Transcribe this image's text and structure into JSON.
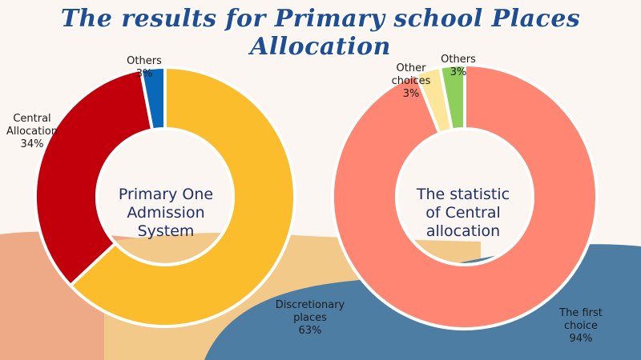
{
  "title": "The results for Primary school Places Allocation",
  "colors": {
    "background": "#fbf6f1",
    "title": "#1f4e96",
    "peach": "#eeaa86",
    "sand": "#f3c98a",
    "blue": "#4d7da3"
  },
  "chart_data": [
    {
      "type": "pie",
      "donut": true,
      "center_text": [
        "Primary One",
        "Admission",
        "System"
      ],
      "slices": [
        {
          "label": [
            "Discretionary",
            "places"
          ],
          "value": 63,
          "pct_text": "63%",
          "color": "#fcbd2d"
        },
        {
          "label": [
            "Central",
            "Allocation"
          ],
          "value": 34,
          "pct_text": "34%",
          "color": "#c1000c"
        },
        {
          "label": [
            "Others"
          ],
          "value": 3,
          "pct_text": "3%",
          "color": "#0a68b8"
        }
      ]
    },
    {
      "type": "pie",
      "donut": true,
      "center_text": [
        "The statistic",
        "of Central",
        "allocation"
      ],
      "slices": [
        {
          "label": [
            "The first",
            "choice"
          ],
          "value": 94,
          "pct_text": "94%",
          "color": "#fe8673"
        },
        {
          "label": [
            "Other",
            "choices"
          ],
          "value": 3,
          "pct_text": "3%",
          "color": "#fde69a"
        },
        {
          "label": [
            "Others"
          ],
          "value": 3,
          "pct_text": "3%",
          "color": "#8dcf5a"
        }
      ]
    }
  ]
}
